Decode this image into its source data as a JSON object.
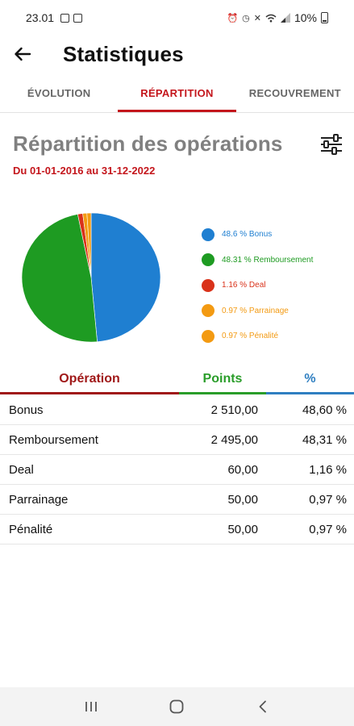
{
  "status_bar": {
    "time": "23.01",
    "battery": "10%",
    "left_icons": [
      "gallery-icon",
      "notification-icon"
    ],
    "right_icons": [
      "alarm-icon",
      "clock-icon",
      "mute-icon",
      "wifi-icon",
      "signal-icon",
      "battery-icon"
    ]
  },
  "app_bar": {
    "title": "Statistiques",
    "back_icon": "arrow-left-icon"
  },
  "tabs": [
    {
      "label": "ÉVOLUTION",
      "active": false
    },
    {
      "label": "RÉPARTITION",
      "active": true
    },
    {
      "label": "RECOUVREMENT",
      "active": false
    }
  ],
  "section": {
    "title": "Répartition des opérations",
    "date_range": "Du 01-01-2016 au 31-12-2022",
    "filter_icon": "sliders-icon"
  },
  "colors": {
    "accent": "#c4161c",
    "bonus": "#1f7fd1",
    "remboursement": "#1e9b22",
    "deal": "#d9321a",
    "parrainage": "#f39a12",
    "penalite": "#f39a12"
  },
  "chart_data": {
    "type": "pie",
    "slices": [
      {
        "label": "Bonus",
        "value": 48.6,
        "color": "#1f7fd1"
      },
      {
        "label": "Remboursement",
        "value": 48.31,
        "color": "#1e9b22"
      },
      {
        "label": "Deal",
        "value": 1.16,
        "color": "#d9321a"
      },
      {
        "label": "Parrainage",
        "value": 0.97,
        "color": "#f39a12"
      },
      {
        "label": "Pénalité",
        "value": 0.97,
        "color": "#f39a12"
      }
    ],
    "legend": [
      "48.6 % Bonus",
      "48.31 % Remboursement",
      "1.16 % Deal",
      "0.97 % Parrainage",
      "0.97 % Pénalité"
    ],
    "legend_position": "right"
  },
  "table": {
    "headers": {
      "operation": "Opération",
      "points": "Points",
      "percent": "%"
    },
    "rows": [
      {
        "operation": "Bonus",
        "points": "2 510,00",
        "percent": "48,60 %"
      },
      {
        "operation": "Remboursement",
        "points": "2 495,00",
        "percent": "48,31 %"
      },
      {
        "operation": "Deal",
        "points": "60,00",
        "percent": "1,16 %"
      },
      {
        "operation": "Parrainage",
        "points": "50,00",
        "percent": "0,97 %"
      },
      {
        "operation": "Pénalité",
        "points": "50,00",
        "percent": "0,97 %"
      }
    ]
  },
  "nav_bar": {
    "icons": [
      "recent-apps-icon",
      "home-icon",
      "back-icon"
    ]
  }
}
